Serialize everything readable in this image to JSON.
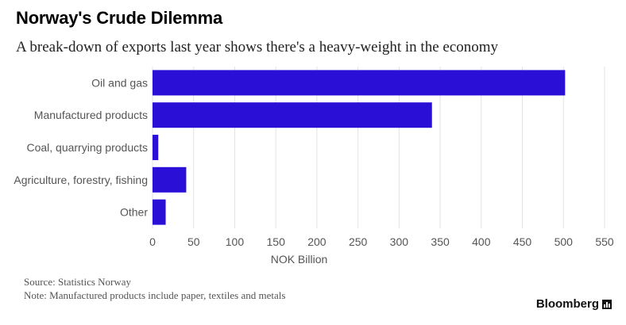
{
  "header": {
    "title": "Norway's Crude Dilemma",
    "subtitle": "A break-down of exports last year shows there's a heavy-weight in the economy"
  },
  "footer": {
    "source": "Source: Statistics Norway",
    "note": "Note: Manufactured products include paper, textiles and metals",
    "brand": "Bloomberg"
  },
  "colors": {
    "bar": "#2a10d6",
    "grid": "#e3e3e3",
    "text": "#555555"
  },
  "chart_data": {
    "type": "bar",
    "orientation": "horizontal",
    "categories": [
      "Oil and gas",
      "Manufactured products",
      "Coal, quarrying products",
      "Agriculture, forestry, fishing",
      "Other"
    ],
    "values": [
      502,
      340,
      7,
      41,
      16
    ],
    "xlabel": "NOK Billion",
    "xlim": [
      0,
      550
    ],
    "xticks": [
      0,
      50,
      100,
      150,
      200,
      250,
      300,
      350,
      400,
      450,
      500,
      550
    ],
    "grid": true,
    "legend": "none"
  }
}
